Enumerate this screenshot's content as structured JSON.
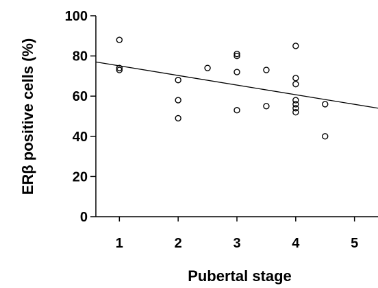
{
  "chart_data": {
    "type": "scatter",
    "title": "",
    "xlabel": "Pubertal stage",
    "ylabel": "ERβ positive cells (%)",
    "xlim": [
      0.6,
      5.4
    ],
    "ylim": [
      0,
      100
    ],
    "xticks": [
      1,
      2,
      3,
      4,
      5
    ],
    "yticks": [
      0,
      20,
      40,
      60,
      80,
      100
    ],
    "grid": false,
    "points": [
      {
        "x": 1,
        "y": 88
      },
      {
        "x": 1,
        "y": 74
      },
      {
        "x": 1,
        "y": 73
      },
      {
        "x": 2,
        "y": 68
      },
      {
        "x": 2,
        "y": 58
      },
      {
        "x": 2,
        "y": 49
      },
      {
        "x": 2.5,
        "y": 74
      },
      {
        "x": 3,
        "y": 81
      },
      {
        "x": 3,
        "y": 80
      },
      {
        "x": 3,
        "y": 72
      },
      {
        "x": 3,
        "y": 53
      },
      {
        "x": 3.5,
        "y": 73
      },
      {
        "x": 3.5,
        "y": 55
      },
      {
        "x": 4,
        "y": 85
      },
      {
        "x": 4,
        "y": 69
      },
      {
        "x": 4,
        "y": 66
      },
      {
        "x": 4,
        "y": 58
      },
      {
        "x": 4,
        "y": 56
      },
      {
        "x": 4,
        "y": 54
      },
      {
        "x": 4,
        "y": 52
      },
      {
        "x": 4.5,
        "y": 56
      },
      {
        "x": 4.5,
        "y": 40
      }
    ],
    "regression_line": {
      "x": [
        0.6,
        5.4
      ],
      "y": [
        77,
        54
      ]
    }
  }
}
